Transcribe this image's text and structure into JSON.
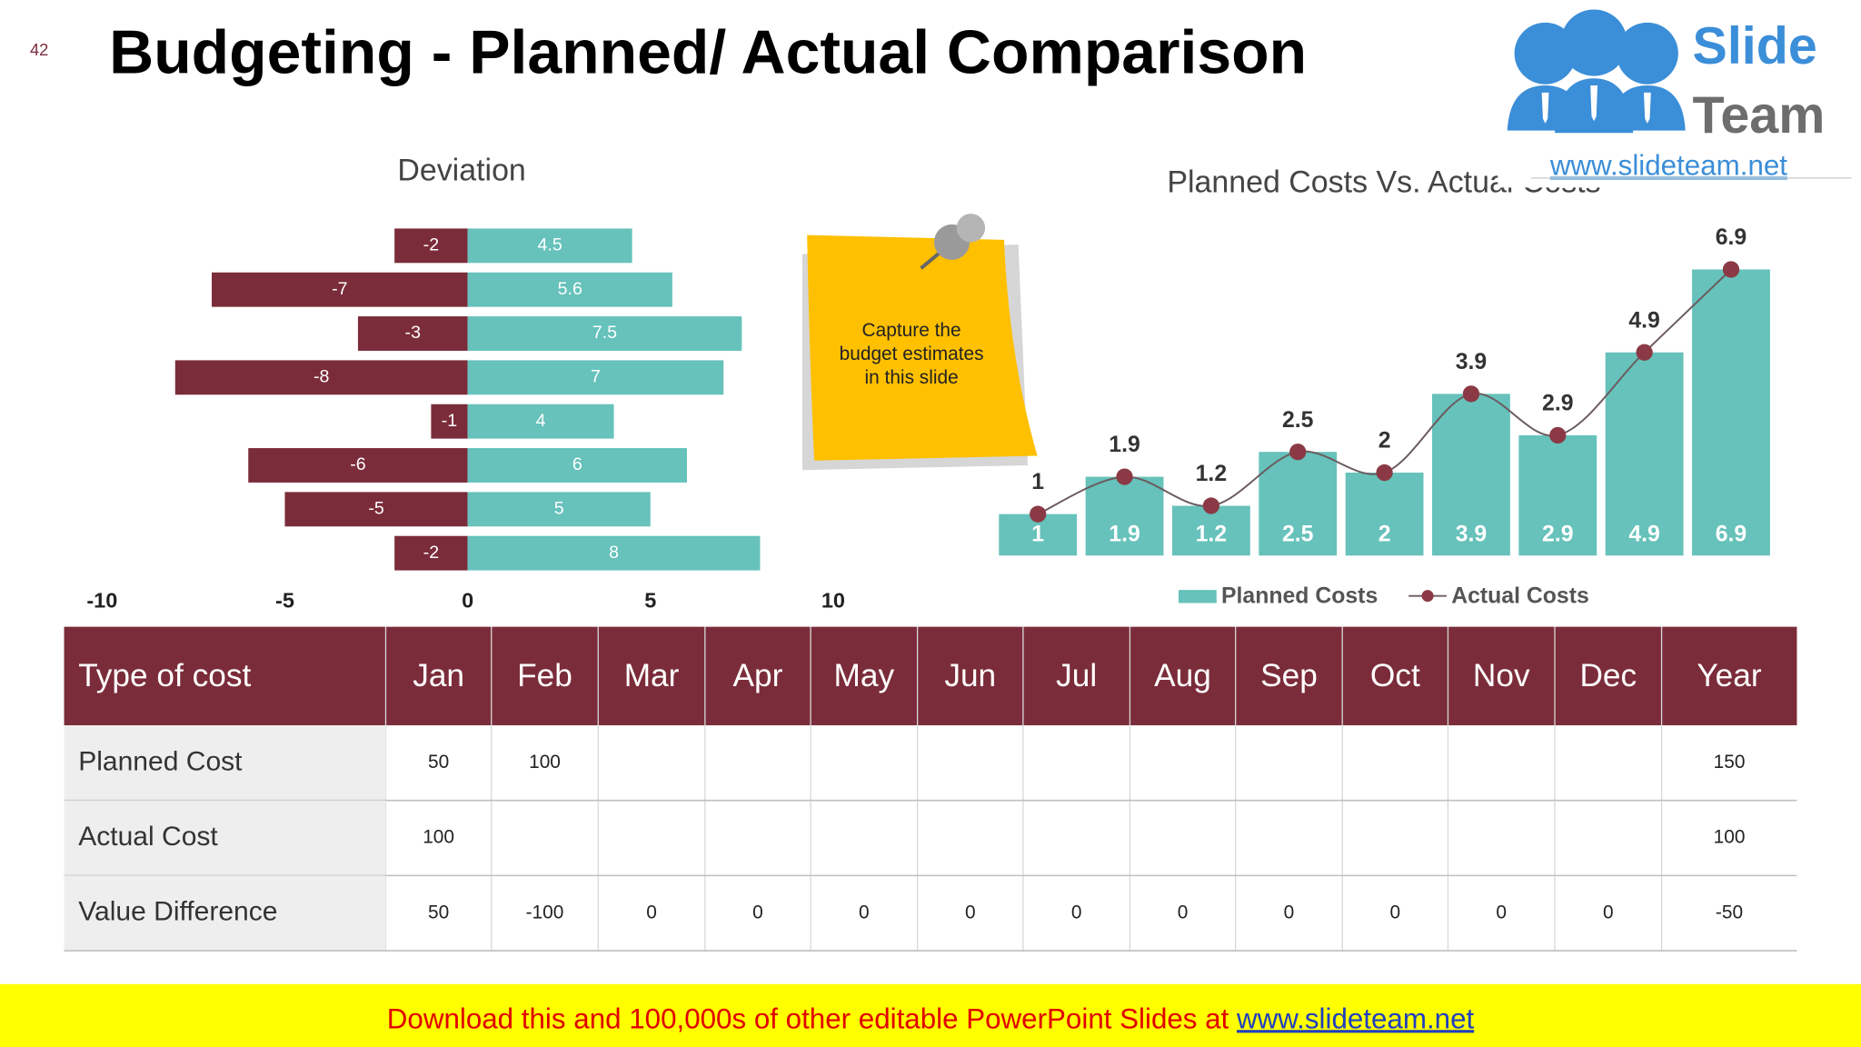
{
  "slide_number": "42",
  "title": "Budgeting - Planned/ Actual Comparison",
  "logo": {
    "word1": "Slide",
    "word2": "Team",
    "url": "www.slideteam.net"
  },
  "note": [
    "Capture the",
    "budget estimates",
    "in this slide"
  ],
  "chart_data": [
    {
      "type": "bar",
      "orientation": "horizontal",
      "title": "Deviation",
      "categories": [
        null,
        null,
        null,
        null,
        null,
        null,
        null,
        null
      ],
      "series": [
        {
          "color": "#7b2c3a",
          "values": [
            -2,
            -7,
            -3,
            -8,
            -1,
            -6,
            -5,
            -2
          ]
        },
        {
          "color": "#66c2bb",
          "values": [
            4.5,
            5.6,
            7.5,
            7,
            4,
            6,
            5,
            8
          ]
        }
      ],
      "xlim": [
        -10,
        10
      ],
      "xticks": [
        -10,
        -5,
        0,
        5,
        10
      ]
    },
    {
      "type": "combo",
      "title": "Planned Costs Vs. Actual Costs",
      "categories": [
        null,
        null,
        null,
        null,
        null,
        null,
        null,
        null,
        null
      ],
      "series": [
        {
          "name": "Planned Costs",
          "type": "bar",
          "color": "#66c2bb",
          "values": [
            1,
            1.9,
            1.2,
            2.5,
            2,
            3.9,
            2.9,
            4.9,
            6.9
          ]
        },
        {
          "name": "Actual Costs",
          "type": "line",
          "color": "#8b3a45",
          "values": [
            1,
            1.9,
            1.2,
            2.5,
            2,
            3.9,
            2.9,
            4.9,
            6.9
          ]
        }
      ],
      "legend": "bottom"
    }
  ],
  "table": {
    "header": [
      "Type of cost",
      "Jan",
      "Feb",
      "Mar",
      "Apr",
      "May",
      "Jun",
      "Jul",
      "Aug",
      "Sep",
      "Oct",
      "Nov",
      "Dec",
      "Year"
    ],
    "rows": [
      [
        "Planned Cost",
        50,
        100,
        null,
        null,
        null,
        null,
        null,
        null,
        null,
        null,
        null,
        null,
        150
      ],
      [
        "Actual Cost",
        100,
        null,
        null,
        null,
        null,
        null,
        null,
        null,
        null,
        null,
        null,
        null,
        100
      ],
      [
        "Value Difference",
        50,
        -100,
        0,
        0,
        0,
        0,
        0,
        0,
        0,
        0,
        0,
        0,
        -50
      ]
    ]
  },
  "footer": {
    "text": "Download this and 100,000s of other editable PowerPoint Slides at ",
    "link": "www.slideteam.net"
  }
}
